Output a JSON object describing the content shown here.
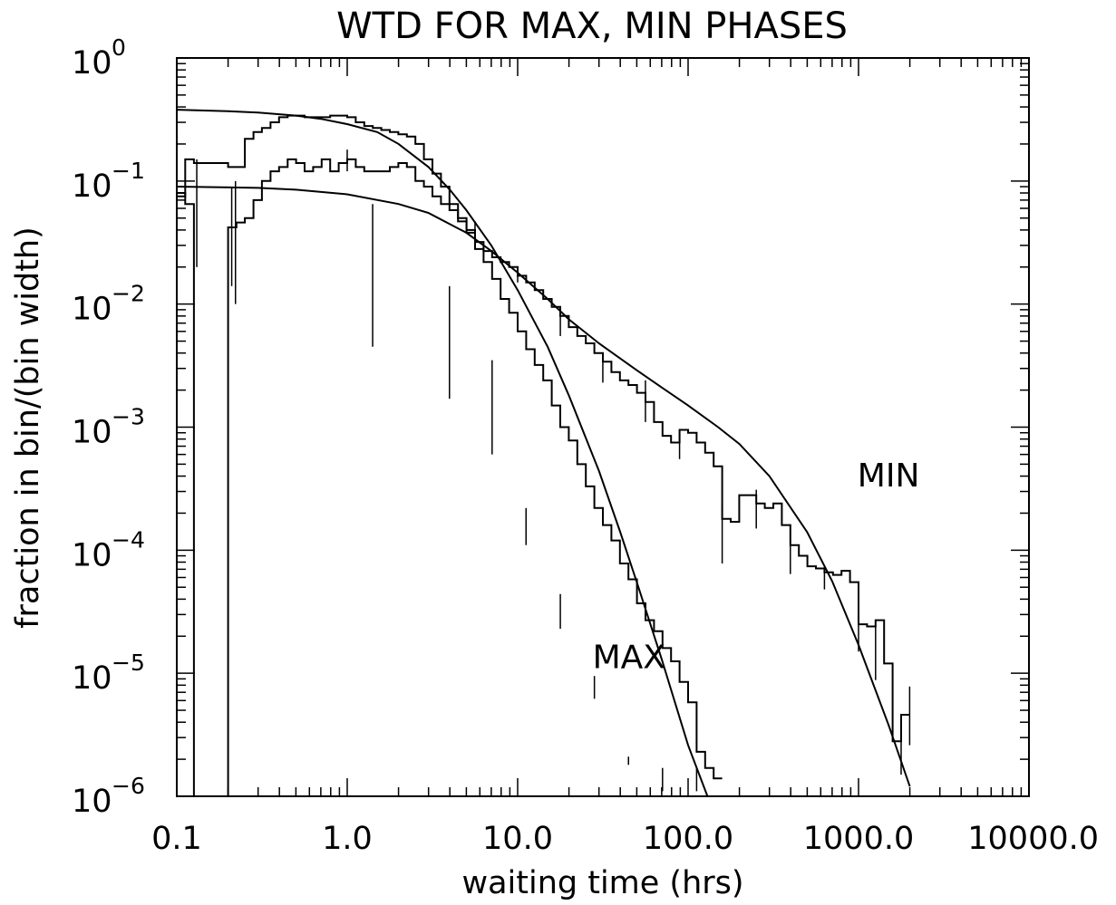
{
  "chart_data": {
    "type": "line",
    "title": "WTD FOR MAX, MIN PHASES",
    "xlabel": "waiting time (hrs)",
    "ylabel": "fraction in bin/(bin width)",
    "x_scale": "log",
    "y_scale": "log",
    "xlim": [
      0.1,
      10000
    ],
    "ylim": [
      1e-06,
      1
    ],
    "x_ticks": [
      {
        "value": 0.1,
        "label": "0.1"
      },
      {
        "value": 1,
        "label": "1.0"
      },
      {
        "value": 10,
        "label": "10.0"
      },
      {
        "value": 100,
        "label": "100.0"
      },
      {
        "value": 1000,
        "label": "1000.0"
      },
      {
        "value": 10000,
        "label": "10000.0"
      }
    ],
    "y_ticks": [
      {
        "value": 1,
        "base": "10",
        "exp": "0"
      },
      {
        "value": 0.1,
        "base": "10",
        "exp": "−1"
      },
      {
        "value": 0.01,
        "base": "10",
        "exp": "−2"
      },
      {
        "value": 0.001,
        "base": "10",
        "exp": "−3"
      },
      {
        "value": 0.0001,
        "base": "10",
        "exp": "−4"
      },
      {
        "value": 1e-05,
        "base": "10",
        "exp": "−5"
      },
      {
        "value": 1e-06,
        "base": "10",
        "exp": "−6"
      }
    ],
    "annotations": [
      {
        "text": "MIN",
        "x": 1500,
        "y": 0.00033
      },
      {
        "text": "MAX",
        "x": 45,
        "y": 1.1e-05
      }
    ],
    "series": [
      {
        "style": "histogram",
        "edges": [
          0.1,
          0.112,
          0.126,
          0.141,
          0.158,
          0.178,
          0.2,
          0.224,
          0.251,
          0.282,
          0.316,
          0.355,
          0.398,
          0.447,
          0.501,
          0.562,
          0.631,
          0.708,
          0.794,
          0.891,
          1.0,
          1.122,
          1.259,
          1.413,
          1.585,
          1.778,
          1.995,
          2.239,
          2.512,
          2.818,
          3.162,
          3.548,
          3.981,
          4.467,
          5.012,
          5.623,
          6.31,
          7.079,
          7.943,
          8.913,
          10.0,
          11.22,
          12.59,
          14.13,
          15.85,
          17.78,
          19.95,
          22.39,
          25.12,
          28.18,
          31.62,
          35.48,
          39.81,
          44.67,
          50.12,
          56.23,
          63.1,
          70.79,
          79.43,
          89.13,
          100.0,
          112.2,
          125.9,
          141.3,
          158.5
        ],
        "values": [
          0.075,
          0.15,
          0.14,
          0.14,
          0.14,
          0.14,
          0.13,
          0.13,
          0.22,
          0.25,
          0.27,
          0.3,
          0.33,
          0.34,
          0.34,
          0.33,
          0.33,
          0.33,
          0.34,
          0.34,
          0.33,
          0.3,
          0.28,
          0.27,
          0.26,
          0.25,
          0.24,
          0.23,
          0.2,
          0.15,
          0.115,
          0.09,
          0.065,
          0.05,
          0.04,
          0.028,
          0.022,
          0.016,
          0.011,
          0.0085,
          0.006,
          0.0043,
          0.0032,
          0.0024,
          0.0015,
          0.001,
          0.00078,
          0.0005,
          0.00033,
          0.00022,
          0.00016,
          0.00012,
          7.8e-05,
          5.8e-05,
          3.7e-05,
          2.7e-05,
          2.2e-05,
          1.6e-05,
          1.25e-05,
          8.5e-06,
          5.8e-06,
          2.3e-06,
          1.7e-06,
          1.4e-06
        ],
        "errors_x": [
          0.131,
          0.221,
          1.41,
          3.98,
          7.08,
          11.2,
          17.8,
          28.2,
          44.7,
          70.8,
          112.2
        ],
        "errors_lo": [
          0.02,
          0.01,
          0.0045,
          0.0017,
          0.0006,
          0.00011,
          2.3e-05,
          6.2e-06,
          1.8e-06,
          1.1e-06,
          1.1e-06
        ],
        "errors_hi": [
          0.15,
          0.1,
          0.065,
          0.014,
          0.0035,
          0.00022,
          4.4e-05,
          9.5e-06,
          2.1e-06,
          1.7e-06,
          1.7e-06
        ]
      },
      {
        "style": "histogram",
        "edges": [
          0.1,
          0.112,
          0.126,
          0.141,
          0.158,
          0.178,
          0.2,
          0.224,
          0.251,
          0.282,
          0.316,
          0.355,
          0.398,
          0.447,
          0.501,
          0.562,
          0.631,
          0.708,
          0.794,
          0.891,
          1.0,
          1.122,
          1.259,
          1.413,
          1.585,
          1.778,
          1.995,
          2.239,
          2.512,
          2.818,
          3.162,
          3.548,
          3.981,
          4.467,
          5.012,
          5.623,
          6.31,
          7.079,
          7.943,
          8.913,
          10.0,
          11.22,
          12.59,
          14.13,
          15.85,
          17.78,
          19.95,
          22.39,
          25.12,
          28.18,
          31.62,
          35.48,
          39.81,
          44.67,
          50.12,
          56.23,
          63.1,
          70.79,
          79.43,
          89.13,
          100.0,
          112.2,
          125.9,
          141.3,
          158.5,
          177.8,
          199.5,
          223.9,
          251.2,
          281.8,
          316.2,
          354.8,
          398.1,
          446.7,
          501.2,
          562.3,
          631.0,
          707.9,
          794.3,
          891.3,
          1000.0,
          1122.0,
          1259.0,
          1413.0,
          1585.0,
          1778.0,
          1995.0
        ],
        "values": [
          0.08,
          0.065,
          5.5e-07,
          5.5e-07,
          5.5e-07,
          5.5e-07,
          0.042,
          0.046,
          0.05,
          0.07,
          0.1,
          0.12,
          0.13,
          0.15,
          0.14,
          0.12,
          0.13,
          0.15,
          0.12,
          0.14,
          0.15,
          0.13,
          0.12,
          0.12,
          0.12,
          0.13,
          0.14,
          0.13,
          0.1,
          0.09,
          0.075,
          0.065,
          0.058,
          0.047,
          0.038,
          0.032,
          0.027,
          0.024,
          0.022,
          0.02,
          0.017,
          0.015,
          0.013,
          0.011,
          0.0095,
          0.008,
          0.0065,
          0.0055,
          0.0048,
          0.004,
          0.0034,
          0.0028,
          0.0024,
          0.0022,
          0.0019,
          0.0016,
          0.0011,
          0.00085,
          0.00075,
          0.00095,
          0.0009,
          0.00075,
          0.00062,
          0.00048,
          0.00018,
          0.00017,
          0.00028,
          0.00028,
          0.00024,
          0.00022,
          0.00024,
          0.00016,
          0.00011,
          9e-05,
          7.4e-05,
          7.1e-05,
          6.6e-05,
          6.3e-05,
          6.8e-05,
          5.5e-05,
          2.5e-05,
          2.4e-05,
          2.7e-05,
          1.2e-05,
          2.8e-06,
          4.6e-06
        ],
        "errors_x": [
          0.21,
          1.0,
          5.62,
          10.0,
          17.8,
          31.6,
          56.2,
          89.1,
          158.5,
          251.2,
          398.1,
          631.0,
          1000,
          1259,
          1778,
          1995
        ],
        "errors_lo": [
          0.014,
          0.12,
          0.032,
          0.015,
          0.0055,
          0.0023,
          0.0011,
          0.00055,
          7.8e-05,
          0.00015,
          6.4e-05,
          4.8e-05,
          1.5e-05,
          8.8e-06,
          1.5e-06,
          2.6e-06
        ],
        "errors_hi": [
          0.09,
          0.18,
          0.047,
          0.02,
          0.0082,
          0.0037,
          0.0024,
          0.00095,
          0.00023,
          0.00031,
          0.00011,
          7.3e-05,
          3.5e-05,
          2.4e-05,
          4.3e-06,
          7.8e-06
        ]
      },
      {
        "style": "line",
        "x": [
          0.1,
          0.2,
          0.3,
          0.5,
          0.7,
          1.0,
          1.5,
          2.0,
          3.0,
          4.0,
          5.0,
          7.0,
          10.0,
          15.0,
          20.0,
          30.0,
          40.0,
          50.0,
          70.0,
          100.0,
          130.0
        ],
        "y": [
          0.38,
          0.37,
          0.36,
          0.34,
          0.32,
          0.29,
          0.25,
          0.2,
          0.13,
          0.085,
          0.058,
          0.03,
          0.013,
          0.0045,
          0.0018,
          0.00044,
          0.00014,
          5.5e-05,
          1.3e-05,
          2.6e-06,
          8.5e-07
        ]
      },
      {
        "style": "line",
        "x": [
          0.1,
          0.3,
          0.5,
          1.0,
          2.0,
          3.0,
          5.0,
          7.0,
          10.0,
          15.0,
          20.0,
          30.0,
          50.0,
          70.0,
          100.0,
          150.0,
          200.0,
          300.0,
          500.0,
          700.0,
          1000.0,
          1500.0,
          2000.0
        ],
        "y": [
          0.09,
          0.088,
          0.085,
          0.078,
          0.065,
          0.055,
          0.038,
          0.027,
          0.018,
          0.011,
          0.0075,
          0.0048,
          0.0029,
          0.0021,
          0.0015,
          0.001,
          0.00073,
          0.0004,
          0.00014,
          5.6e-05,
          1.7e-05,
          3.8e-06,
          1.2e-06
        ]
      }
    ]
  }
}
